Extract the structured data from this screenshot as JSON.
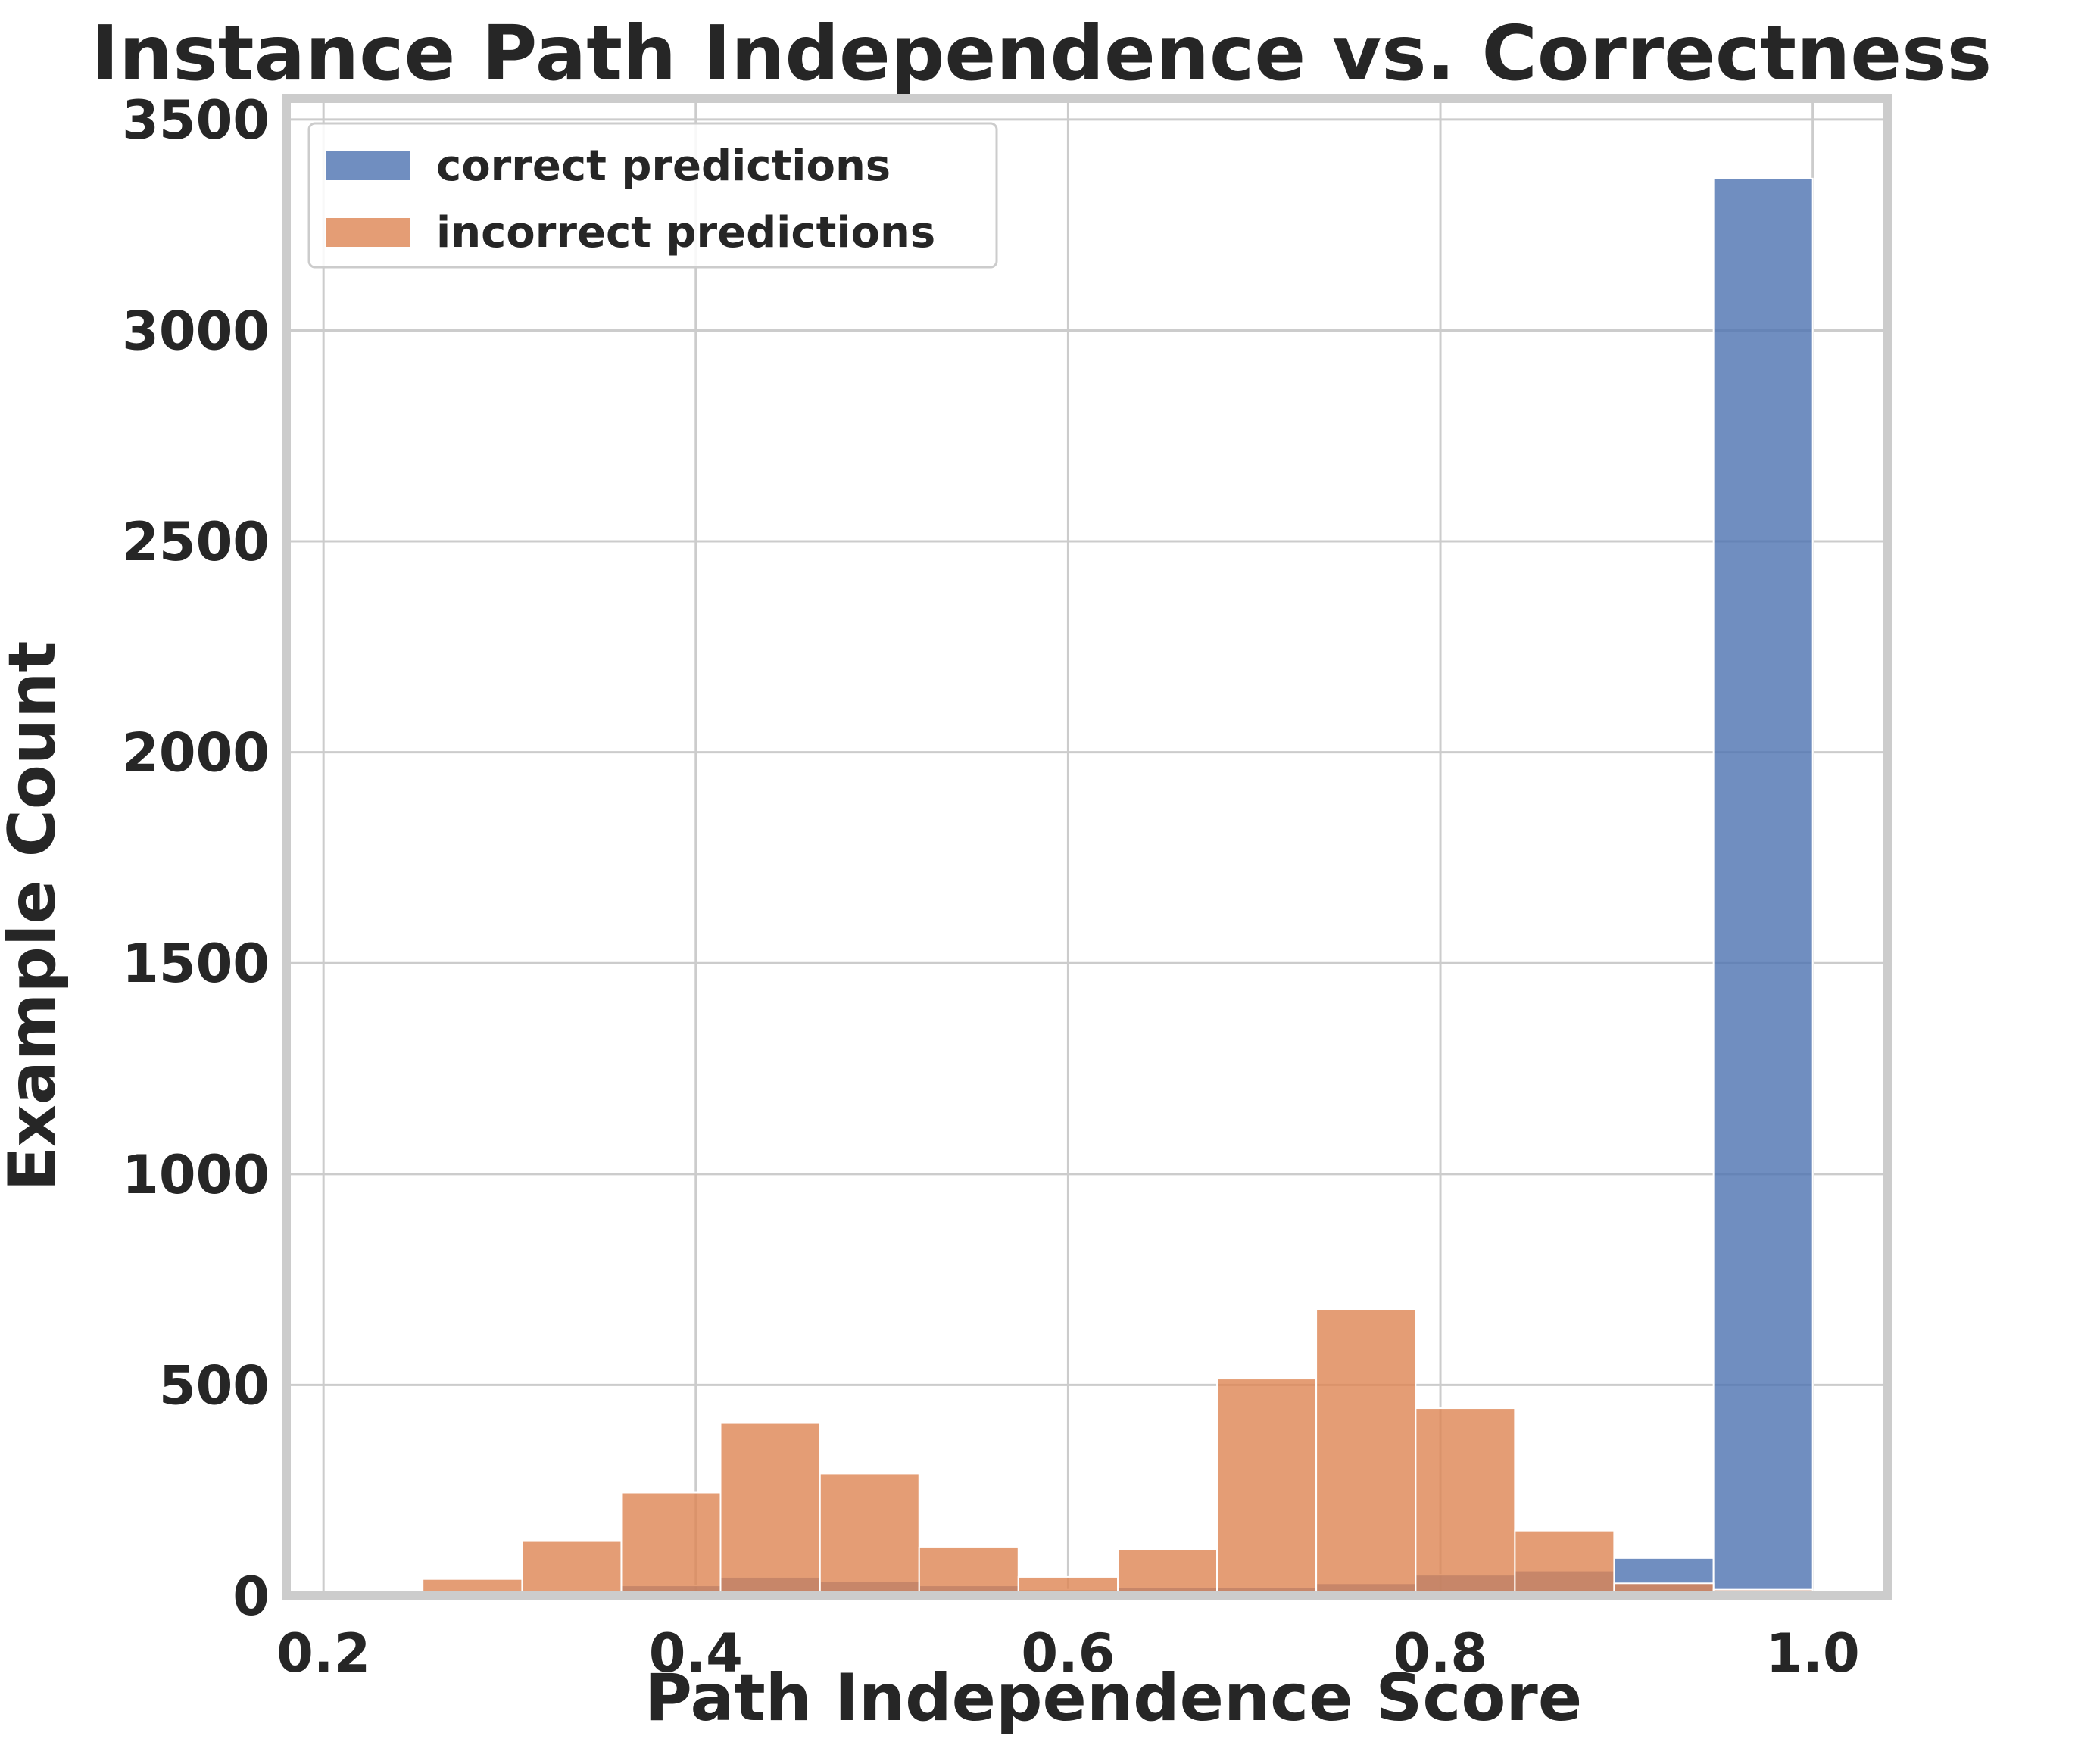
{
  "chart_data": {
    "type": "bar",
    "title": "Instance Path Independence vs. Correctness",
    "xlabel": "Path Independence Score",
    "ylabel": "Example Count",
    "xlim": [
      0.18,
      1.04
    ],
    "ylim": [
      0,
      3550
    ],
    "xticks": [
      0.2,
      0.4,
      0.6,
      0.8,
      1.0
    ],
    "xtick_labels": [
      "0.2",
      "0.4",
      "0.6",
      "0.8",
      "1.0"
    ],
    "yticks": [
      0,
      500,
      1000,
      1500,
      2000,
      2500,
      3000,
      3500
    ],
    "ytick_labels": [
      "0",
      "500",
      "1000",
      "1500",
      "2000",
      "2500",
      "3000",
      "3500"
    ],
    "grid": true,
    "legend_position": "top-left",
    "bin_edges": [
      0.2,
      0.2533,
      0.3067,
      0.36,
      0.4133,
      0.4667,
      0.52,
      0.5733,
      0.6267,
      0.68,
      0.7333,
      0.7867,
      0.84,
      0.8933,
      0.9467,
      1.0
    ],
    "series": [
      {
        "name": "correct predictions",
        "color": "#4c72b0",
        "values": [
          0,
          0,
          0,
          25,
          45,
          35,
          25,
          15,
          20,
          20,
          30,
          50,
          60,
          90,
          3360
        ]
      },
      {
        "name": "incorrect predictions",
        "color": "#dd8452",
        "values": [
          5,
          40,
          130,
          245,
          410,
          290,
          115,
          45,
          110,
          515,
          680,
          445,
          155,
          30,
          15
        ]
      }
    ]
  }
}
